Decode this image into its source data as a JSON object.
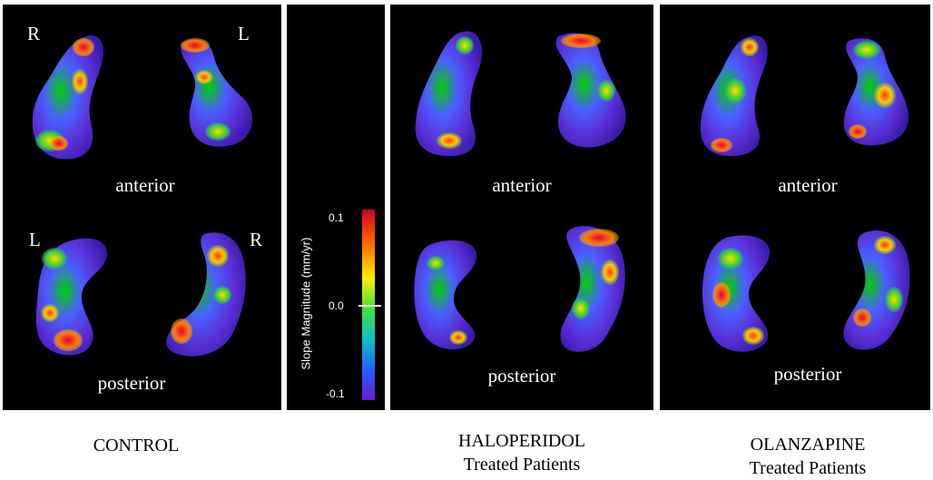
{
  "panels": {
    "control": {
      "caption": "CONTROL",
      "top_left_side": "R",
      "top_right_side": "L",
      "bottom_left_side": "L",
      "bottom_right_side": "R",
      "anterior_label": "anterior",
      "posterior_label": "posterior"
    },
    "haloperidol": {
      "caption_line1": "HALOPERIDOL",
      "caption_line2": "Treated Patients",
      "anterior_label": "anterior",
      "posterior_label": "posterior"
    },
    "olanzapine": {
      "caption_line1": "OLANZAPINE",
      "caption_line2": "Treated Patients",
      "anterior_label": "anterior",
      "posterior_label": "posterior"
    }
  },
  "colorbar": {
    "title": "Slope Magnitude (mm/yr)",
    "ticks": [
      "0.1",
      "0.0",
      "-0.1"
    ],
    "colors": [
      "#ff0000",
      "#ffa500",
      "#ffff00",
      "#00ff00",
      "#00ffff",
      "#0000ff",
      "#6b1fd1"
    ]
  }
}
